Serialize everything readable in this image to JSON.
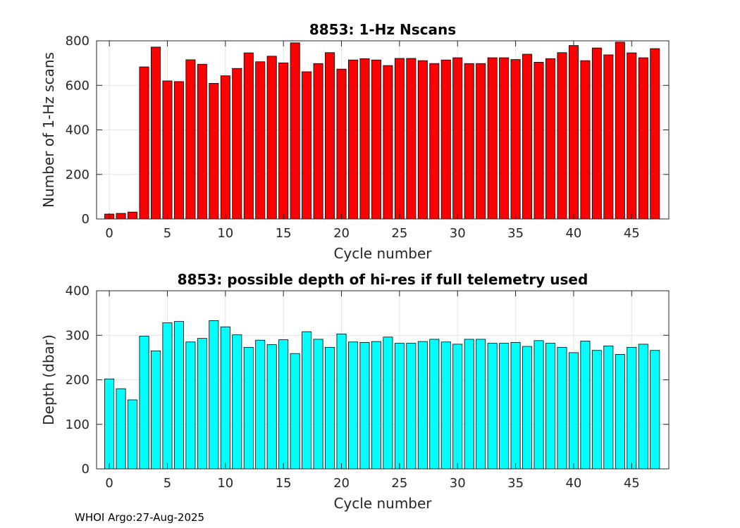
{
  "footer": "WHOI Argo:27-Aug-2025",
  "chart_data": [
    {
      "type": "bar",
      "title": "8853: 1-Hz Nscans",
      "xlabel": "Cycle number",
      "ylabel": "Number of 1-Hz scans",
      "x": [
        0,
        1,
        2,
        3,
        4,
        5,
        6,
        7,
        8,
        9,
        10,
        11,
        12,
        13,
        14,
        15,
        16,
        17,
        18,
        19,
        20,
        21,
        22,
        23,
        24,
        25,
        26,
        27,
        28,
        29,
        30,
        31,
        32,
        33,
        34,
        35,
        36,
        37,
        38,
        39,
        40,
        41,
        42,
        43,
        44,
        45,
        46,
        47
      ],
      "values": [
        22,
        25,
        31,
        683,
        772,
        620,
        617,
        715,
        695,
        609,
        643,
        676,
        746,
        706,
        731,
        701,
        791,
        661,
        698,
        747,
        673,
        714,
        720,
        714,
        689,
        721,
        721,
        711,
        698,
        714,
        724,
        698,
        698,
        724,
        724,
        716,
        740,
        704,
        720,
        747,
        779,
        711,
        768,
        737,
        794,
        746,
        724,
        765
      ],
      "xlim": [
        -1.1,
        48.2
      ],
      "ylim": [
        0,
        800
      ],
      "xticks": [
        0,
        5,
        10,
        15,
        20,
        25,
        30,
        35,
        40,
        45
      ],
      "yticks": [
        0,
        200,
        400,
        600,
        800
      ],
      "bar_color": "#ff0000",
      "grid": true
    },
    {
      "type": "bar",
      "title": "8853: possible depth of hi-res if full telemetry used",
      "xlabel": "Cycle number",
      "ylabel": "Depth (dbar)",
      "x": [
        0,
        1,
        2,
        3,
        4,
        5,
        6,
        7,
        8,
        9,
        10,
        11,
        12,
        13,
        14,
        15,
        16,
        17,
        18,
        19,
        20,
        21,
        22,
        23,
        24,
        25,
        26,
        27,
        28,
        29,
        30,
        31,
        32,
        33,
        34,
        35,
        36,
        37,
        38,
        39,
        40,
        41,
        42,
        43,
        44,
        45,
        46,
        47
      ],
      "values": [
        202,
        180,
        155,
        298,
        265,
        328,
        331,
        285,
        293,
        333,
        319,
        301,
        273,
        289,
        279,
        290,
        259,
        308,
        291,
        273,
        303,
        285,
        284,
        286,
        296,
        282,
        282,
        286,
        291,
        285,
        280,
        291,
        291,
        282,
        282,
        284,
        275,
        288,
        282,
        273,
        261,
        287,
        266,
        276,
        257,
        273,
        280,
        266
      ],
      "xlim": [
        -1.1,
        48.2
      ],
      "ylim": [
        0,
        400
      ],
      "xticks": [
        0,
        5,
        10,
        15,
        20,
        25,
        30,
        35,
        40,
        45
      ],
      "yticks": [
        0,
        100,
        200,
        300,
        400
      ],
      "bar_color": "#00ffff",
      "grid": true
    }
  ]
}
